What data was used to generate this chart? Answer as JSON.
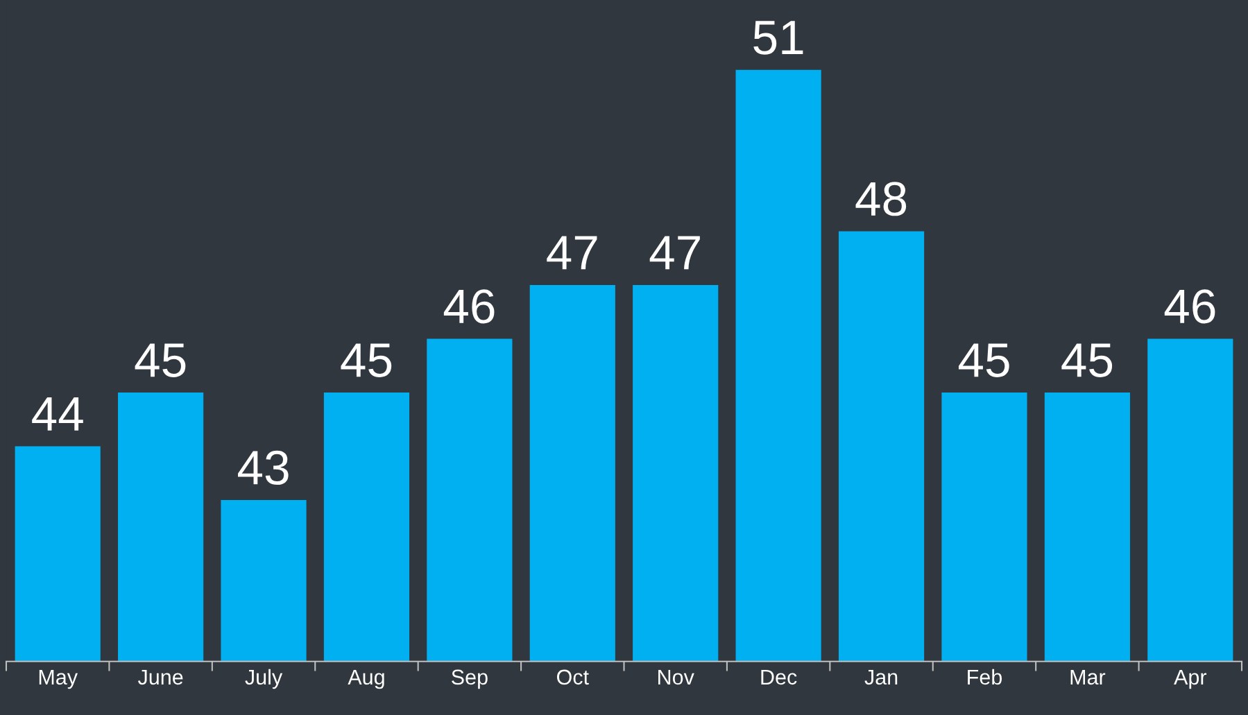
{
  "chart_data": {
    "type": "bar",
    "categories": [
      "May",
      "June",
      "July",
      "Aug",
      "Sep",
      "Oct",
      "Nov",
      "Dec",
      "Jan",
      "Feb",
      "Mar",
      "Apr"
    ],
    "values": [
      44,
      45,
      43,
      45,
      46,
      47,
      47,
      51,
      48,
      45,
      45,
      46
    ],
    "color": "#00b0f0",
    "ylim": [
      40,
      52.3
    ],
    "data_labels": true,
    "grid": false,
    "legend": false,
    "tick_labels": "x"
  }
}
